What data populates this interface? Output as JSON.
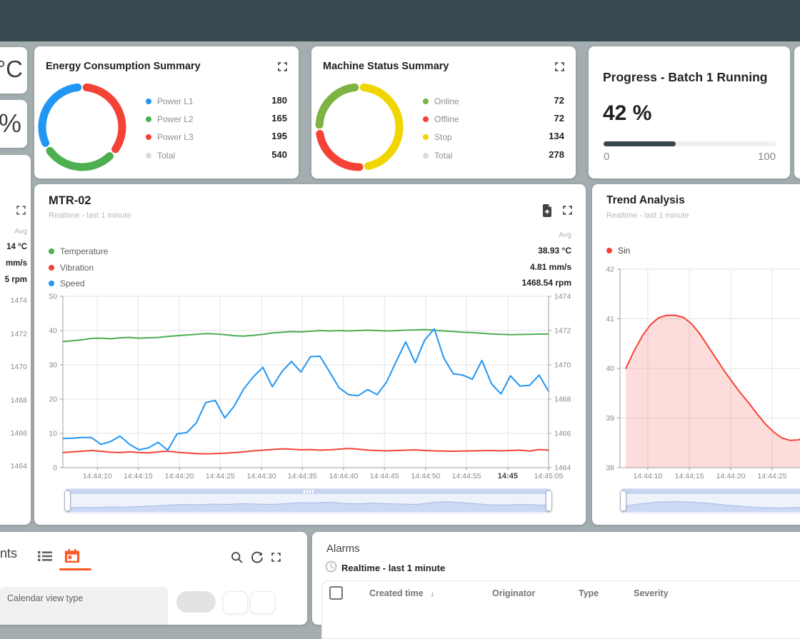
{
  "theme": {
    "accent": "#ff5722",
    "topbar": "#36494e",
    "background": "#a4aeb0"
  },
  "left_partials": {
    "temp_unit": "°C",
    "percent_unit": "%",
    "chart_fragment": {
      "avg_label": "Avg",
      "values": [
        "14 °C",
        "mm/s",
        "5 rpm"
      ],
      "axis_labels": [
        "1474",
        "1472",
        "1470",
        "1468",
        "1466",
        "1464"
      ]
    }
  },
  "energy": {
    "title": "Energy Consumption Summary",
    "legend": [
      {
        "label": "Power L1",
        "value": "180",
        "color": "#2196f3"
      },
      {
        "label": "Power L2",
        "value": "165",
        "color": "#4caf50"
      },
      {
        "label": "Power L3",
        "value": "195",
        "color": "#f44336"
      },
      {
        "label": "Total",
        "value": "540",
        "color": "#dcdcdc"
      }
    ],
    "donut": [
      {
        "name": "Power L3",
        "value": 195,
        "color": "#f44336"
      },
      {
        "name": "Power L2",
        "value": 165,
        "color": "#4caf50"
      },
      {
        "name": "Power L1",
        "value": 180,
        "color": "#2196f3"
      }
    ]
  },
  "machine": {
    "title": "Machine Status Summary",
    "legend": [
      {
        "label": "Online",
        "value": "72",
        "color": "#7cb342"
      },
      {
        "label": "Offline",
        "value": "72",
        "color": "#f44336"
      },
      {
        "label": "Stop",
        "value": "134",
        "color": "#f0d500"
      },
      {
        "label": "Total",
        "value": "278",
        "color": "#dcdcdc"
      }
    ],
    "donut": [
      {
        "name": "Stop",
        "value": 134,
        "color": "#f0d500"
      },
      {
        "name": "Offline",
        "value": 72,
        "color": "#f44336"
      },
      {
        "name": "Online",
        "value": 72,
        "color": "#7cb342"
      }
    ]
  },
  "progress": {
    "title": "Progress - Batch 1 Running",
    "value": "42 %",
    "percent": 42,
    "bar_color": "#37474f",
    "min": "0",
    "max": "100"
  },
  "mtr": {
    "title": "MTR-02",
    "subtitle": "Realtime - last 1 minute",
    "avg_label": "Avg",
    "legend": [
      {
        "label": "Temperature",
        "value": "38.93 °C",
        "color": "#4caf50"
      },
      {
        "label": "Vibration",
        "value": "4.81 mm/s",
        "color": "#f44336"
      },
      {
        "label": "Speed",
        "value": "1468.54 rpm",
        "color": "#2196f3"
      }
    ]
  },
  "trend": {
    "title": "Trend Analysis",
    "subtitle": "Realtime - last 1 minute",
    "legend": [
      {
        "label": "Sin",
        "color": "#f44336"
      }
    ]
  },
  "calendar": {
    "title_fragment": "nts",
    "field_label": "Calendar view type"
  },
  "alarms": {
    "title": "Alarms",
    "timewindow": "Realtime - last 1 minute",
    "sort_indicator": "↓",
    "columns": [
      "Created time",
      "Originator",
      "Type",
      "Severity"
    ]
  },
  "chart_data": [
    {
      "id": "mtr02",
      "type": "line",
      "title": "MTR-02",
      "x_ticks": [
        {
          "label": "14:44:10",
          "pos": 0.071
        },
        {
          "label": "14:44:15",
          "pos": 0.155
        },
        {
          "label": "14:44:20",
          "pos": 0.24
        },
        {
          "label": "14:44:25",
          "pos": 0.324
        },
        {
          "label": "14:44:30",
          "pos": 0.409
        },
        {
          "label": "14:44:35",
          "pos": 0.493
        },
        {
          "label": "14:44:40",
          "pos": 0.578
        },
        {
          "label": "14:44:45",
          "pos": 0.662
        },
        {
          "label": "14:44:50",
          "pos": 0.747
        },
        {
          "label": "14:44:55",
          "pos": 0.831
        },
        {
          "label": "14:45",
          "pos": 0.916,
          "bold": true
        },
        {
          "label": "14:45:05",
          "pos": 1.0
        }
      ],
      "y_left": {
        "min": 0,
        "max": 50,
        "ticks": [
          0,
          10,
          20,
          30,
          40,
          50
        ]
      },
      "y_right": {
        "min": 1464,
        "max": 1474,
        "ticks": [
          1464,
          1466,
          1468,
          1470,
          1472,
          1474
        ]
      },
      "series": [
        {
          "name": "Temperature",
          "color": "#4caf50",
          "axis": "left",
          "values": [
            36.8,
            37.0,
            37.3,
            37.7,
            37.8,
            37.6,
            37.9,
            38.0,
            37.8,
            37.9,
            38.0,
            38.3,
            38.5,
            38.7,
            38.9,
            39.1,
            39.0,
            38.8,
            38.5,
            38.4,
            38.6,
            38.9,
            39.3,
            39.5,
            39.7,
            39.6,
            39.8,
            40.0,
            39.9,
            40.0,
            39.9,
            40.0,
            40.1,
            40.0,
            39.9,
            40.0,
            40.1,
            40.2,
            40.3,
            40.1,
            39.9,
            39.7,
            39.5,
            39.4,
            39.2,
            39.0,
            38.9,
            38.8,
            38.85,
            38.9,
            38.95,
            39.0
          ]
        },
        {
          "name": "Vibration",
          "color": "#f44336",
          "axis": "left",
          "values": [
            4.4,
            4.6,
            4.8,
            5.0,
            4.8,
            4.5,
            4.4,
            4.6,
            4.4,
            4.3,
            4.6,
            4.8,
            4.5,
            4.3,
            4.1,
            4.0,
            4.1,
            4.2,
            4.4,
            4.6,
            4.9,
            5.1,
            5.3,
            5.5,
            5.4,
            5.2,
            5.3,
            5.1,
            5.2,
            5.4,
            5.6,
            5.4,
            5.1,
            5.0,
            4.9,
            5.0,
            5.1,
            5.2,
            5.0,
            4.9,
            4.85,
            4.8,
            4.85,
            4.9,
            4.95,
            5.0,
            4.9,
            5.0,
            5.1,
            4.85,
            5.3,
            5.1
          ]
        },
        {
          "name": "Speed",
          "color": "#2196f3",
          "axis": "right",
          "values": [
            1465.7,
            1465.72,
            1465.76,
            1465.76,
            1465.36,
            1465.52,
            1465.84,
            1465.36,
            1465.04,
            1465.16,
            1465.48,
            1465.02,
            1465.98,
            1466.04,
            1466.6,
            1467.8,
            1467.92,
            1466.9,
            1467.6,
            1468.6,
            1469.3,
            1469.86,
            1468.72,
            1469.6,
            1470.2,
            1469.58,
            1470.48,
            1470.5,
            1469.6,
            1468.66,
            1468.26,
            1468.2,
            1468.56,
            1468.26,
            1469.0,
            1470.2,
            1471.34,
            1470.12,
            1471.46,
            1472.1,
            1470.4,
            1469.48,
            1469.4,
            1469.16,
            1470.26,
            1468.9,
            1468.3,
            1469.36,
            1468.76,
            1468.8,
            1469.4,
            1468.46
          ]
        }
      ],
      "navigator_wave": [
        0.22,
        0.25,
        0.24,
        0.28,
        0.26,
        0.3,
        0.33,
        0.38,
        0.42,
        0.4,
        0.44,
        0.42,
        0.46,
        0.44,
        0.42,
        0.46,
        0.52,
        0.5,
        0.55,
        0.48,
        0.45,
        0.5,
        0.46,
        0.44,
        0.42,
        0.52,
        0.58,
        0.52,
        0.46,
        0.4,
        0.38,
        0.42,
        0.4,
        0.36
      ]
    },
    {
      "id": "trend",
      "type": "area",
      "title": "Trend Analysis",
      "x_start_frac": 0.031,
      "x_ticks": [
        {
          "label": "14:44:10",
          "pos": 0.149
        },
        {
          "label": "14:44:15",
          "pos": 0.372
        },
        {
          "label": "14:44:20",
          "pos": 0.594
        },
        {
          "label": "14:44:25",
          "pos": 0.816
        }
      ],
      "y_left": {
        "min": 38,
        "max": 42,
        "ticks": [
          38,
          39,
          40,
          41,
          42
        ]
      },
      "series": [
        {
          "name": "Sin",
          "color": "#f44336",
          "axis": "left",
          "fill": "rgba(244,67,54,0.18)",
          "values": [
            40.0,
            40.35,
            40.65,
            40.88,
            41.02,
            41.07,
            41.07,
            41.03,
            40.9,
            40.7,
            40.45,
            40.2,
            39.95,
            39.72,
            39.5,
            39.3,
            39.08,
            38.88,
            38.72,
            38.6,
            38.55,
            38.56,
            38.62
          ]
        }
      ],
      "navigator_wave": [
        0.3,
        0.45,
        0.55,
        0.58,
        0.55,
        0.48,
        0.38,
        0.3,
        0.24,
        0.22,
        0.24,
        0.28
      ]
    }
  ]
}
